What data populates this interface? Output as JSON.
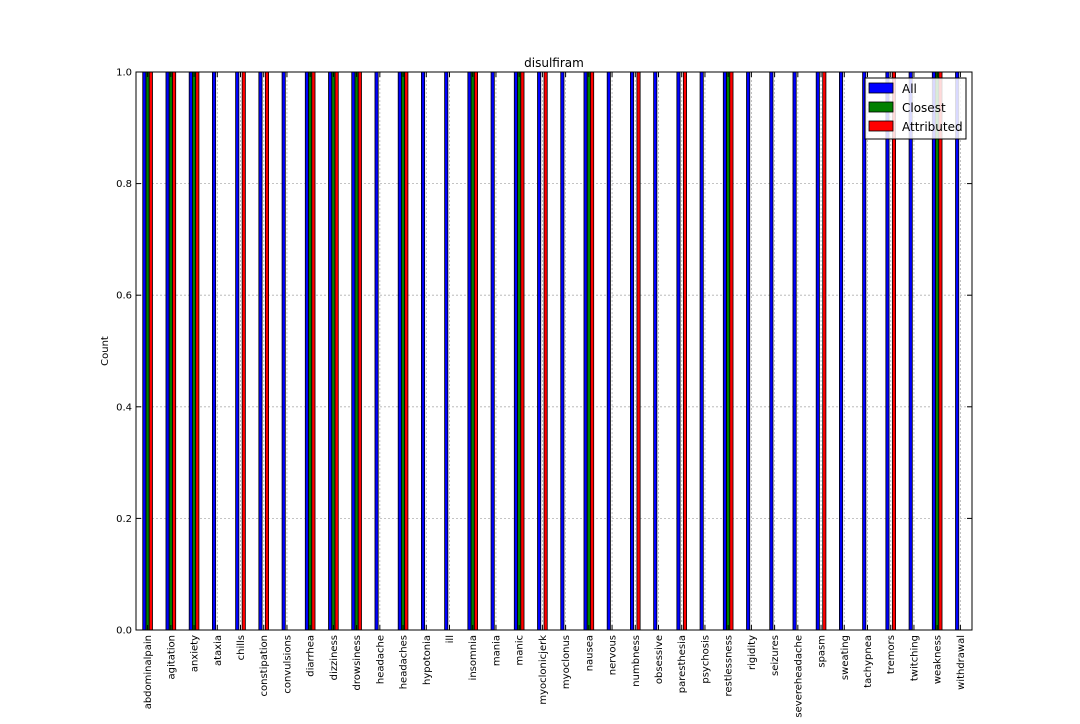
{
  "chart_data": {
    "type": "bar",
    "title": "disulfiram",
    "xlabel": "",
    "ylabel": "Count",
    "ylim": [
      0,
      1.0
    ],
    "yticks": [
      "0.0",
      "0.2",
      "0.4",
      "0.6",
      "0.8",
      "1.0"
    ],
    "grid": true,
    "legend_position": "top-right",
    "categories": [
      "abdominalpain",
      "agitation",
      "anxiety",
      "ataxia",
      "chills",
      "constipation",
      "convulsions",
      "diarrhea",
      "dizziness",
      "drowsiness",
      "headache",
      "headaches",
      "hypotonia",
      "ill",
      "insomnia",
      "mania",
      "manic",
      "myoclonicjerk",
      "myoclonus",
      "nausea",
      "nervous",
      "numbness",
      "obsessive",
      "paresthesia",
      "psychosis",
      "restlessness",
      "rigidity",
      "seizures",
      "severeheadache",
      "spasm",
      "sweating",
      "tachypnea",
      "tremors",
      "twitching",
      "weakness",
      "withdrawal"
    ],
    "series": [
      {
        "name": "All",
        "color": "#0000ff",
        "values": [
          1,
          1,
          1,
          1,
          1,
          1,
          1,
          1,
          1,
          1,
          1,
          1,
          1,
          1,
          1,
          1,
          1,
          1,
          1,
          1,
          1,
          1,
          1,
          1,
          1,
          1,
          1,
          1,
          1,
          1,
          1,
          1,
          1,
          1,
          1,
          1
        ]
      },
      {
        "name": "Closest",
        "color": "#008000",
        "values": [
          1,
          1,
          1,
          0,
          0,
          0,
          0,
          1,
          1,
          1,
          0,
          1,
          0,
          0,
          1,
          0,
          1,
          0,
          0,
          1,
          0,
          0,
          0,
          0,
          0,
          1,
          0,
          0,
          0,
          0,
          0,
          0,
          0,
          0,
          1,
          0
        ]
      },
      {
        "name": "Attributed",
        "color": "#ff0000",
        "values": [
          1,
          1,
          1,
          0,
          1,
          1,
          0,
          1,
          1,
          1,
          0,
          1,
          0,
          0,
          1,
          0,
          1,
          1,
          0,
          1,
          0,
          1,
          0,
          1,
          0,
          1,
          0,
          0,
          0,
          1,
          0,
          0,
          1,
          0,
          1,
          0
        ]
      }
    ]
  }
}
